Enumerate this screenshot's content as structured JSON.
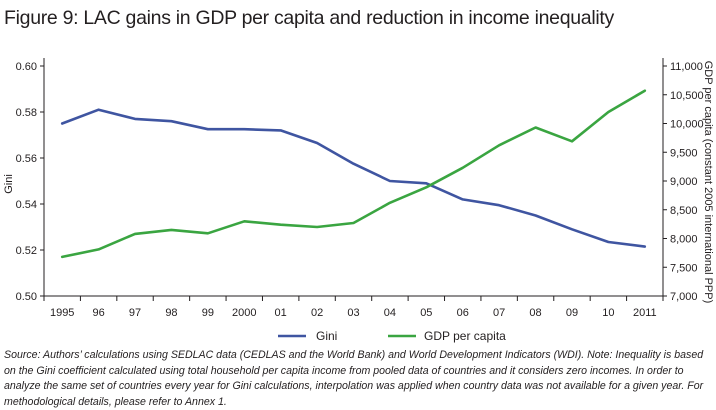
{
  "figure_title": "Figure 9: LAC gains in GDP per capita and reduction in income inequality",
  "source_note": "Source: Authors’ calculations using SEDLAC data (CEDLAS and the World Bank) and World Development Indicators (WDI). Note: Inequality is based on the Gini coefficient calculated using total household per capita income from pooled data of countries and it considers zero incomes. In order to analyze the same set of countries every year for Gini calculations, interpolation was applied when country data was not available for a given year. For methodological details, please refer to Annex 1.",
  "colors": {
    "gini": "#3f55a1",
    "gdp": "#3aa541",
    "axis": "#231f20"
  },
  "chart_data": {
    "type": "line",
    "title": "Figure 9: LAC gains in GDP per capita and reduction in income inequality",
    "categories": [
      "1995",
      "96",
      "97",
      "98",
      "99",
      "2000",
      "01",
      "02",
      "03",
      "04",
      "05",
      "06",
      "07",
      "08",
      "09",
      "10",
      "2011"
    ],
    "series": [
      {
        "name": "Gini",
        "axis": "left",
        "values": [
          0.575,
          0.581,
          0.577,
          0.576,
          0.5725,
          0.5725,
          0.572,
          0.5665,
          0.5575,
          0.55,
          0.549,
          0.542,
          0.5395,
          0.535,
          0.529,
          0.5235,
          0.5215
        ]
      },
      {
        "name": "GDP per capita",
        "axis": "right",
        "values": [
          7680,
          7810,
          8080,
          8150,
          8090,
          8300,
          8240,
          8200,
          8270,
          8620,
          8890,
          9230,
          9620,
          9930,
          9690,
          10200,
          10570
        ]
      }
    ],
    "ylabel": "Gini",
    "ylabel_right": "GDP per capita (constant 2005 international PPP)",
    "ylim": [
      0.5,
      0.6
    ],
    "ylim_right": [
      7000,
      11000
    ],
    "yticks": [
      "0.50",
      "0.52",
      "0.54",
      "0.56",
      "0.58",
      "0.60"
    ],
    "yticks_right": [
      "7,000",
      "7,500",
      "8,000",
      "8,500",
      "9,000",
      "9,500",
      "10,000",
      "10,500",
      "11,000"
    ],
    "legend": {
      "position": "bottom",
      "entries": [
        "Gini",
        "GDP per capita"
      ]
    },
    "grid": false
  }
}
